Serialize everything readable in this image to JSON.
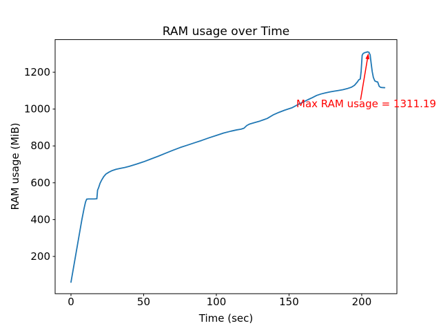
{
  "figure": {
    "background": "#ffffff",
    "axis_color": "#000000",
    "tick_label_color": "#000000"
  },
  "chart_data": {
    "type": "line",
    "title": "RAM usage over Time",
    "xlabel": "Time (sec)",
    "ylabel": "RAM usage (MiB)",
    "xlim": [
      -10.9,
      224.2
    ],
    "ylim": [
      -2.3,
      1377.2
    ],
    "xticks": [
      0,
      50,
      100,
      150,
      200
    ],
    "yticks": [
      200,
      400,
      600,
      800,
      1000,
      1200
    ],
    "grid": false,
    "legend": "none",
    "series": [
      {
        "name": "RAM usage",
        "color": "#1f77b4",
        "points": [
          [
            0,
            60
          ],
          [
            1.5,
            128
          ],
          [
            3,
            196
          ],
          [
            4.5,
            264
          ],
          [
            6,
            332
          ],
          [
            7.5,
            400
          ],
          [
            9,
            460
          ],
          [
            10,
            495
          ],
          [
            10.8,
            511
          ],
          [
            12,
            512
          ],
          [
            14,
            512
          ],
          [
            16,
            512
          ],
          [
            17.8,
            513
          ],
          [
            18.3,
            560
          ],
          [
            19,
            573
          ],
          [
            20,
            597
          ],
          [
            21,
            613
          ],
          [
            22.5,
            633
          ],
          [
            24,
            647
          ],
          [
            26,
            657
          ],
          [
            28,
            665
          ],
          [
            31,
            673
          ],
          [
            34,
            678
          ],
          [
            37,
            683
          ],
          [
            40,
            689
          ],
          [
            45,
            701
          ],
          [
            50,
            714
          ],
          [
            55,
            729
          ],
          [
            60,
            744
          ],
          [
            65,
            760
          ],
          [
            70,
            776
          ],
          [
            75,
            791
          ],
          [
            80,
            804
          ],
          [
            85,
            817
          ],
          [
            90,
            830
          ],
          [
            95,
            844
          ],
          [
            100,
            857
          ],
          [
            105,
            870
          ],
          [
            110,
            880
          ],
          [
            114,
            887
          ],
          [
            117,
            891
          ],
          [
            119,
            896
          ],
          [
            121,
            911
          ],
          [
            123,
            919
          ],
          [
            126,
            926
          ],
          [
            130,
            935
          ],
          [
            135,
            949
          ],
          [
            139,
            968
          ],
          [
            143,
            982
          ],
          [
            147,
            994
          ],
          [
            152,
            1007
          ],
          [
            156,
            1024
          ],
          [
            160,
            1039
          ],
          [
            163,
            1051
          ],
          [
            166,
            1062
          ],
          [
            169,
            1074
          ],
          [
            172,
            1082
          ],
          [
            175,
            1088
          ],
          [
            178,
            1093
          ],
          [
            181,
            1097
          ],
          [
            184,
            1101
          ],
          [
            187,
            1105
          ],
          [
            190,
            1111
          ],
          [
            193,
            1119
          ],
          [
            195,
            1129
          ],
          [
            197,
            1147
          ],
          [
            198,
            1159
          ],
          [
            199,
            1163
          ],
          [
            199.6,
            1205
          ],
          [
            200.3,
            1292
          ],
          [
            201,
            1302
          ],
          [
            202,
            1306
          ],
          [
            203,
            1308
          ],
          [
            204,
            1311.19
          ],
          [
            205,
            1308
          ],
          [
            205.8,
            1294
          ],
          [
            206.5,
            1248
          ],
          [
            207.2,
            1205
          ],
          [
            208,
            1172
          ],
          [
            209,
            1153
          ],
          [
            210,
            1149
          ],
          [
            211,
            1147
          ],
          [
            212,
            1124
          ],
          [
            213,
            1118
          ],
          [
            214,
            1117
          ],
          [
            215.8,
            1116
          ]
        ]
      }
    ],
    "max_value": 1311.19,
    "annotation": {
      "text": "Max RAM usage = 1311.19",
      "color": "#ff0000",
      "text_x": 155,
      "text_y": 1028,
      "arrow_from": [
        199.2,
        1050
      ],
      "arrow_to": [
        204.6,
        1303
      ]
    }
  }
}
